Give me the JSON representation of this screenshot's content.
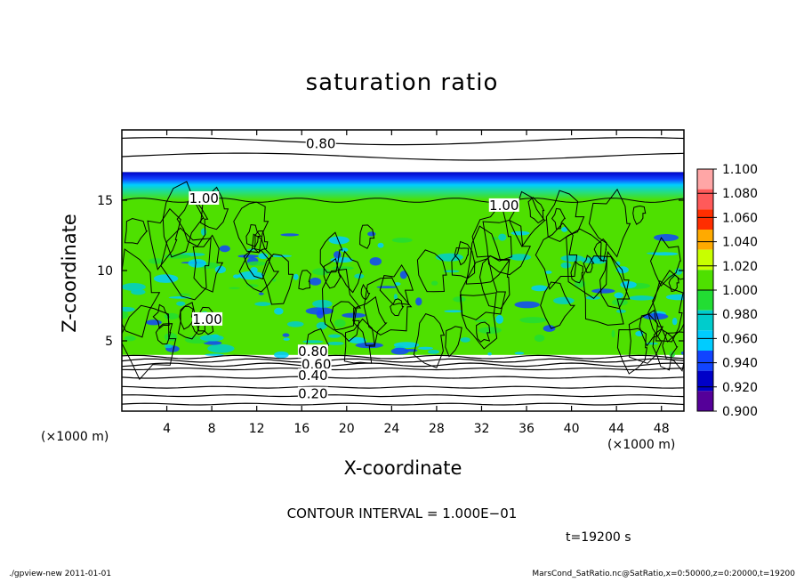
{
  "chart_data": {
    "type": "heatmap",
    "title": "saturation ratio",
    "xlabel": "X-coordinate",
    "ylabel": "Z-coordinate",
    "x_unit": "(×1000 m)",
    "xlim": [
      0,
      50
    ],
    "ylim": [
      0,
      20
    ],
    "x_ticks": [
      4,
      8,
      12,
      16,
      20,
      24,
      28,
      32,
      36,
      40,
      44,
      48
    ],
    "y_ticks": [
      5,
      10,
      15
    ],
    "colorbar": {
      "levels": [
        "1.100",
        "1.080",
        "1.060",
        "1.040",
        "1.020",
        "1.000",
        "0.980",
        "0.960",
        "0.940",
        "0.920",
        "0.900"
      ],
      "colors": [
        "#ffa6a6",
        "#ff5a5a",
        "#ff2e00",
        "#ffaa00",
        "#c8ff00",
        "#4ee000",
        "#22dd33",
        "#00cccc",
        "#00ccff",
        "#1144ff",
        "#0000c8",
        "#550099"
      ]
    },
    "contour_labels": [
      {
        "text": "0.80",
        "x": 17.7,
        "z": 18.9
      },
      {
        "text": "1.00",
        "x": 7.3,
        "z": 15.0
      },
      {
        "text": "1.00",
        "x": 34.0,
        "z": 14.5
      },
      {
        "text": "1.00",
        "x": 7.6,
        "z": 6.4
      },
      {
        "text": "0.80",
        "x": 17.0,
        "z": 4.1
      },
      {
        "text": "0.60",
        "x": 17.3,
        "z": 3.2
      },
      {
        "text": "0.40",
        "x": 17.0,
        "z": 2.4
      },
      {
        "text": "0.20",
        "x": 17.0,
        "z": 1.1
      }
    ],
    "layers": {
      "cloud_top_z": 17.0,
      "cloud_base_z": 4.0,
      "upper_deficit_band": [
        15.0,
        17.0
      ]
    }
  },
  "contour_interval": "CONTOUR INTERVAL = 1.000E−01",
  "time": "t=19200 s",
  "footer_left": "./gpview-new   2011-01-01",
  "footer_right": "MarsCond_SatRatio.nc@SatRatio,x=0:50000,z=0:20000,t=19200"
}
